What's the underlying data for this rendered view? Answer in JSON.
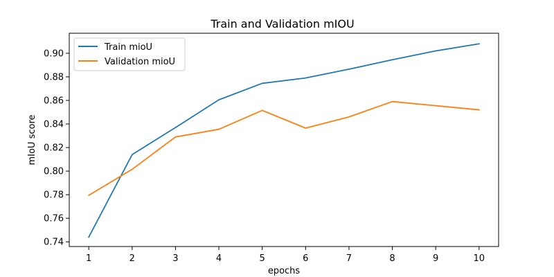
{
  "chart_data": {
    "type": "line",
    "title": "Train and Validation mIOU",
    "xlabel": "epochs",
    "ylabel": "mIoU score",
    "x": [
      1,
      2,
      3,
      4,
      5,
      6,
      7,
      8,
      9,
      10
    ],
    "xticks": [
      "1",
      "2",
      "3",
      "4",
      "5",
      "6",
      "7",
      "8",
      "9",
      "10"
    ],
    "yticks": [
      "0.74",
      "0.76",
      "0.78",
      "0.80",
      "0.82",
      "0.84",
      "0.86",
      "0.88",
      "0.90"
    ],
    "xlim": [
      0.55,
      10.45
    ],
    "ylim": [
      0.736,
      0.917
    ],
    "grid": false,
    "legend_position": "top-left",
    "series": [
      {
        "name": "Train mioU",
        "color": "#1f77b4",
        "values": [
          0.744,
          0.814,
          0.837,
          0.8605,
          0.8745,
          0.879,
          0.8865,
          0.8945,
          0.902,
          0.908
        ]
      },
      {
        "name": "Validation mioU",
        "color": "#ff7f0e",
        "values": [
          0.7795,
          0.8015,
          0.829,
          0.8355,
          0.8515,
          0.8365,
          0.846,
          0.859,
          0.8555,
          0.852
        ]
      }
    ]
  }
}
